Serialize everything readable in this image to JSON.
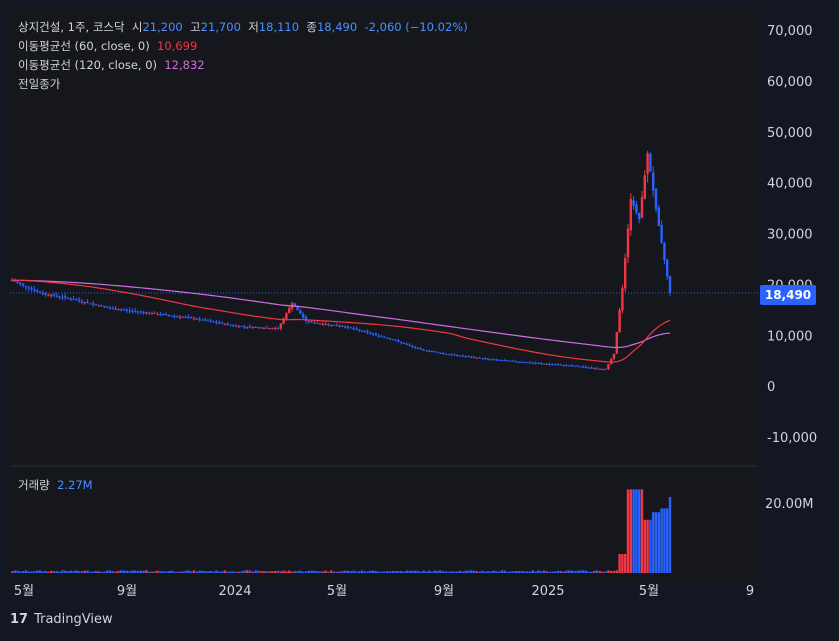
{
  "header": {
    "symbol": "상지건설, 1주, 코스닥",
    "open_label": "시",
    "open": "21,200",
    "high_label": "고",
    "high": "21,700",
    "low_label": "저",
    "low": "18,110",
    "close_label": "종",
    "close": "18,490",
    "change": "-2,060 (−10.02%)",
    "ma60_label": "이동평균선 (60, close, 0)",
    "ma60_value": "10,699",
    "ma120_label": "이동평균선 (120, close, 0)",
    "ma120_value": "12,832",
    "prev_close_label": "전일종가"
  },
  "volume": {
    "label": "거래량",
    "value": "2.27M"
  },
  "current_price_tag": "18,490",
  "footer": {
    "brand": "TradingView"
  },
  "colors": {
    "up": "#2962ff",
    "down": "#f23645",
    "ma60": "#f23645",
    "ma120": "#ce6fe0",
    "background": "#16171d"
  },
  "chart_data": {
    "type": "candlestick",
    "interval": "weekly",
    "price_axis": {
      "ticks": [
        "70,000",
        "60,000",
        "50,000",
        "40,000",
        "30,000",
        "20,000",
        "10,000",
        "0",
        "-10,000"
      ],
      "ylim": [
        -15000,
        73000
      ]
    },
    "time_axis": {
      "ticks": [
        "5월",
        "9월",
        "2024",
        "5월",
        "9월",
        "2025",
        "5월",
        "9"
      ]
    },
    "volume_axis": {
      "ticks": [
        "20.00M"
      ]
    },
    "series": [
      {
        "name": "이동평균선 (120, close, 0)",
        "last": 12832
      },
      {
        "name": "이동평균선 (60, close, 0)",
        "last": 10699
      }
    ],
    "approx_price_path": [
      [
        0,
        21000
      ],
      [
        10,
        18500
      ],
      [
        20,
        17500
      ],
      [
        35,
        15500
      ],
      [
        50,
        14500
      ],
      [
        65,
        13500
      ],
      [
        80,
        12000
      ],
      [
        95,
        11500
      ],
      [
        100,
        16500
      ],
      [
        105,
        13000
      ],
      [
        110,
        12500
      ],
      [
        118,
        12000
      ],
      [
        125,
        11000
      ],
      [
        135,
        9500
      ],
      [
        145,
        7500
      ],
      [
        155,
        6500
      ],
      [
        170,
        5500
      ],
      [
        185,
        4800
      ],
      [
        200,
        4200
      ],
      [
        212,
        3500
      ],
      [
        215,
        6500
      ],
      [
        218,
        19500
      ],
      [
        221,
        37000
      ],
      [
        224,
        33000
      ],
      [
        227,
        46000
      ],
      [
        230,
        35000
      ],
      [
        233,
        25000
      ],
      [
        235,
        18490
      ]
    ],
    "approx_volume_millions": [
      [
        218,
        5
      ],
      [
        221,
        22
      ],
      [
        224,
        22
      ],
      [
        227,
        14
      ],
      [
        230,
        16
      ],
      [
        233,
        17
      ],
      [
        236,
        20
      ],
      [
        239,
        2.27
      ]
    ]
  }
}
